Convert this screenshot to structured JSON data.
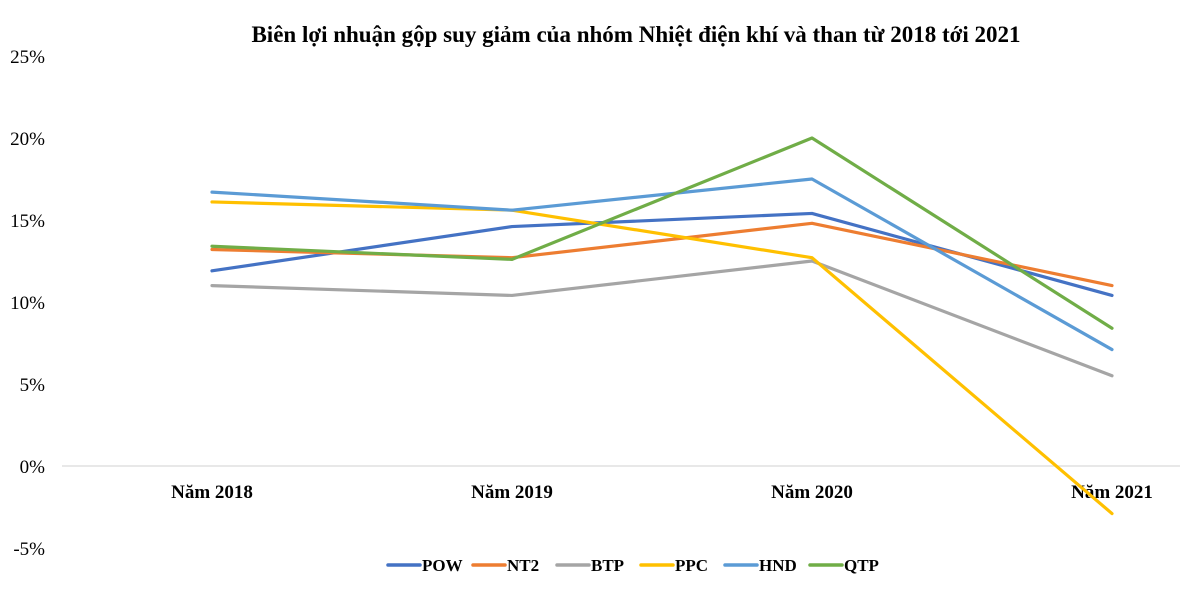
{
  "chart_data": {
    "type": "line",
    "title": "Biên lợi nhuận gộp suy giảm của nhóm Nhiệt điện khí và than từ 2018 tới 2021",
    "xlabel": "",
    "ylabel": "",
    "categories": [
      "Năm 2018",
      "Năm 2019",
      "Năm 2020",
      "Năm 2021"
    ],
    "ylim": [
      -5,
      25
    ],
    "yticks": [
      25,
      20,
      15,
      10,
      5,
      0,
      -5
    ],
    "ytick_labels": [
      "25%",
      "20%",
      "15%",
      "10%",
      "5%",
      "0%",
      "-5%"
    ],
    "grid": false,
    "legend_position": "bottom",
    "series": [
      {
        "name": "POW",
        "color": "#4472C4",
        "values": [
          11.9,
          14.6,
          15.4,
          10.4
        ]
      },
      {
        "name": "NT2",
        "color": "#ED7D31",
        "values": [
          13.2,
          12.7,
          14.8,
          11.0
        ]
      },
      {
        "name": "BTP",
        "color": "#A5A5A5",
        "values": [
          11.0,
          10.4,
          12.5,
          5.5
        ]
      },
      {
        "name": "PPC",
        "color": "#FFC000",
        "values": [
          16.1,
          15.6,
          12.7,
          -2.9
        ]
      },
      {
        "name": "HND",
        "color": "#5B9BD5",
        "values": [
          16.7,
          15.6,
          17.5,
          7.1
        ]
      },
      {
        "name": "QTP",
        "color": "#70AD47",
        "values": [
          13.4,
          12.6,
          20.0,
          8.4
        ]
      }
    ]
  }
}
